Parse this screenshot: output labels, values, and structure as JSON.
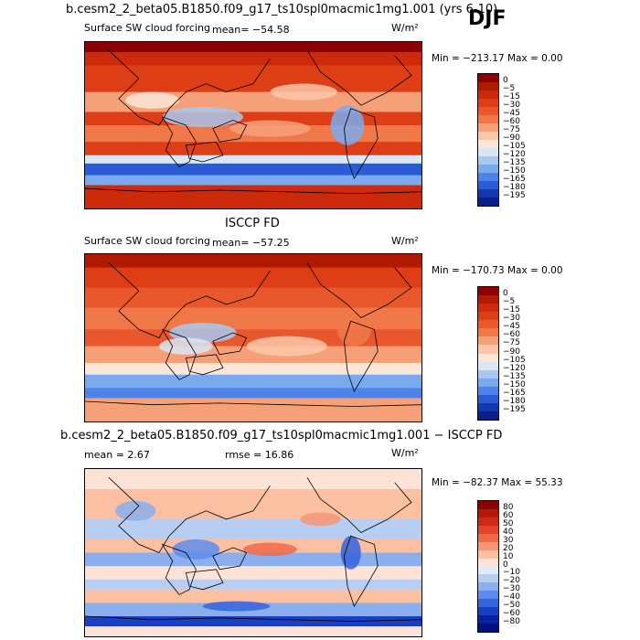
{
  "title_top": "b.cesm2_2_beta05.B1850.f09_g17_ts10spl0macmic1mg1.001 (yrs 6-10)",
  "season": "DJF",
  "panels": [
    {
      "title": "",
      "left_text": "Surface SW cloud forcing",
      "mean_text": "mean=  −54.58",
      "units": "W/m²",
      "minmax": "Min = −213.17 Max =    0.00",
      "levels": [
        "0",
        "−5",
        "−15",
        "−30",
        "−45",
        "−60",
        "−75",
        "−90",
        "−105",
        "−120",
        "−135",
        "−150",
        "−165",
        "−180",
        "−195"
      ],
      "colors": [
        "#8b0000",
        "#b11a00",
        "#cc2a0a",
        "#dd3e16",
        "#e8582c",
        "#f07848",
        "#f6a07a",
        "#fbc7a8",
        "#fbe6d8",
        "#d9e6f4",
        "#aac8ef",
        "#7ba9ef",
        "#4e84ea",
        "#2a5cd6",
        "#1438b0",
        "#07208a"
      ]
    },
    {
      "title": "ISCCP FD",
      "left_text": "Surface SW cloud forcing",
      "mean_text": "mean=  −57.25",
      "units": "W/m²",
      "minmax": "Min = −170.73 Max =    0.00",
      "levels": [
        "0",
        "−5",
        "−15",
        "−30",
        "−45",
        "−60",
        "−75",
        "−90",
        "−105",
        "−120",
        "−135",
        "−150",
        "−165",
        "−180",
        "−195"
      ],
      "colors": [
        "#8b0000",
        "#b11a00",
        "#cc2a0a",
        "#dd3e16",
        "#e8582c",
        "#f07848",
        "#f6a07a",
        "#fbc7a8",
        "#fbe6d8",
        "#d9e6f4",
        "#aac8ef",
        "#7ba9ef",
        "#4e84ea",
        "#2a5cd6",
        "#1438b0",
        "#07208a"
      ]
    },
    {
      "title": "b.cesm2_2_beta05.B1850.f09_g17_ts10spl0macmic1mg1.001 − ISCCP FD",
      "left_text": "mean =    2.67",
      "mean_text": "rmse =  16.86",
      "units": "W/m²",
      "minmax": "Min = −82.37 Max =  55.33",
      "levels": [
        "80",
        "60",
        "50",
        "40",
        "30",
        "20",
        "10",
        "0",
        "−10",
        "−20",
        "−30",
        "−40",
        "−50",
        "−60",
        "−80"
      ],
      "colors": [
        "#8b0000",
        "#b3180c",
        "#cf2a14",
        "#e3452a",
        "#ef6a4a",
        "#f69675",
        "#fbbfa2",
        "#fde3d6",
        "#e2ecf8",
        "#b7cdf1",
        "#8aaeee",
        "#5d8cec",
        "#3563dc",
        "#1a3fc0",
        "#0a22a0",
        "#001080"
      ]
    }
  ]
}
